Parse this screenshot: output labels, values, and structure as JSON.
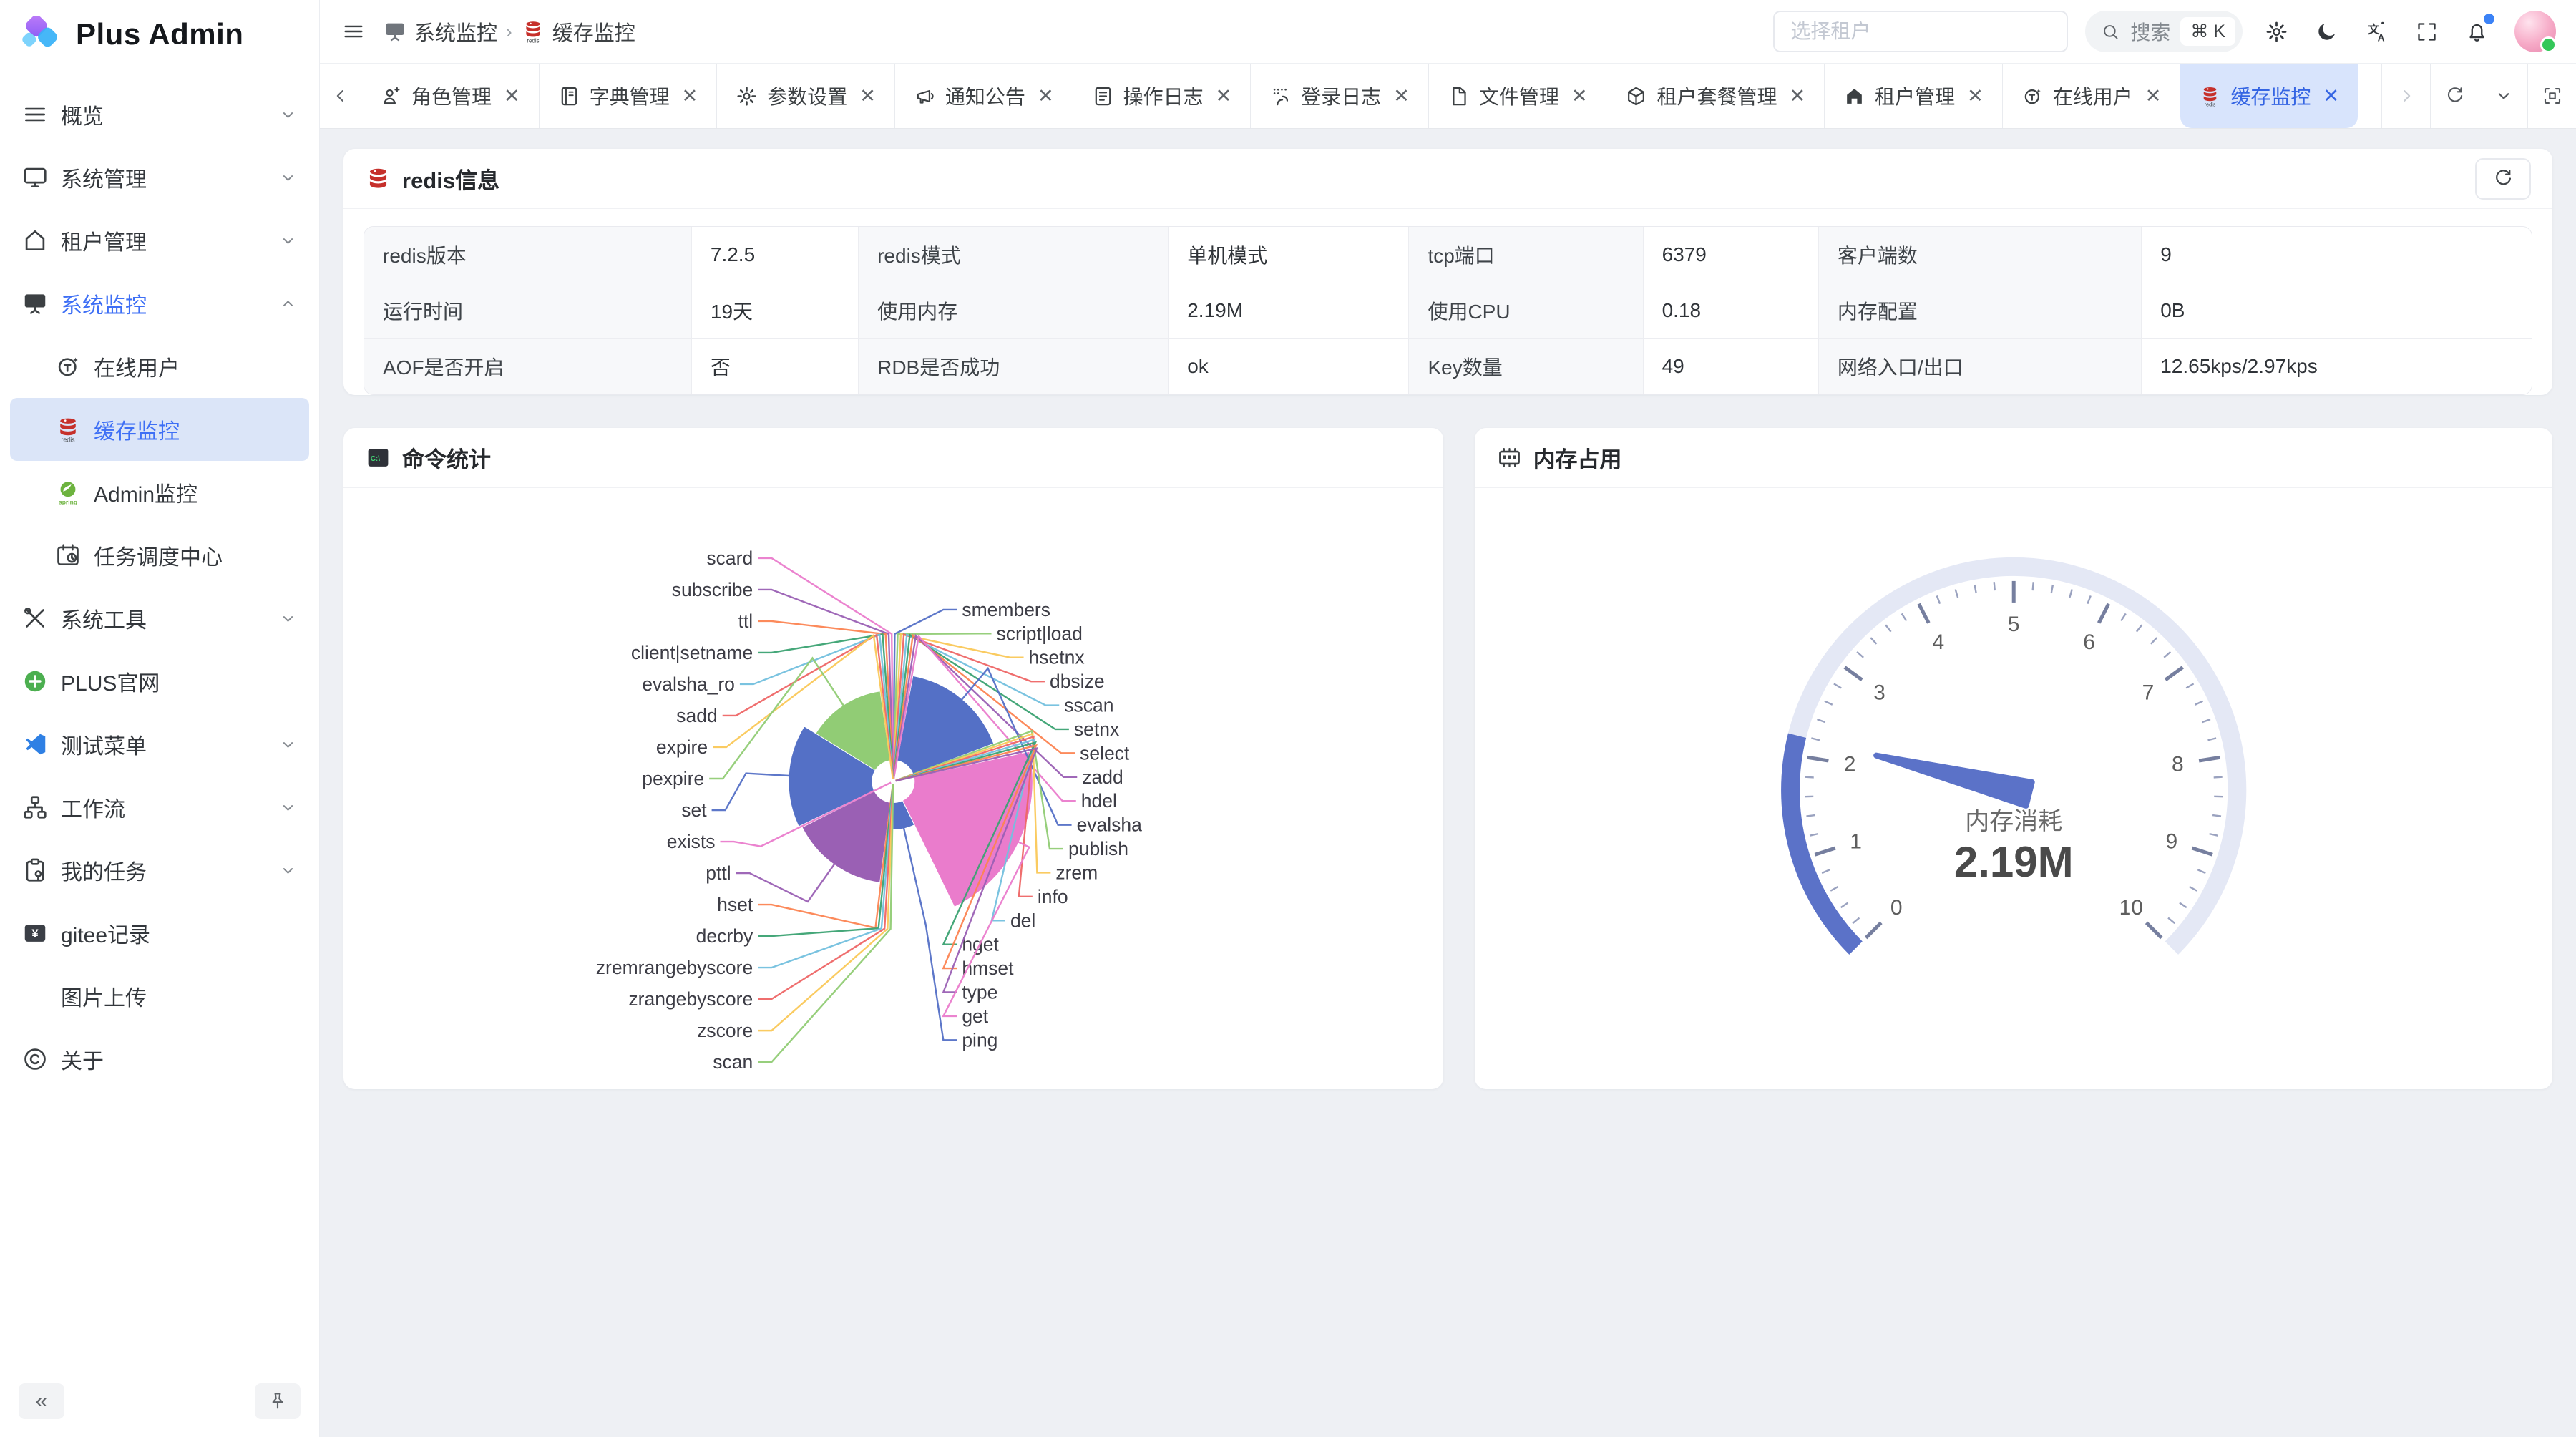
{
  "app": {
    "name": "Plus Admin"
  },
  "breadcrumb": {
    "items": [
      {
        "icon": "board",
        "label": "系统监控"
      },
      {
        "icon": "redisLabel",
        "label": "缓存监控"
      }
    ]
  },
  "header": {
    "tenant_placeholder": "选择租户",
    "search": {
      "label": "搜索",
      "shortcut": "⌘ K"
    },
    "icons": [
      "gear-icon",
      "moon-icon",
      "translate-icon",
      "fullscreen-icon",
      "bell-icon",
      "avatar"
    ]
  },
  "sidebar": {
    "items": [
      {
        "icon": "menu",
        "label": "概览",
        "chevron": "down"
      },
      {
        "icon": "monitor",
        "label": "系统管理",
        "chevron": "down"
      },
      {
        "icon": "home",
        "label": "租户管理",
        "chevron": "down"
      },
      {
        "icon": "board",
        "label": "系统监控",
        "chevron": "up",
        "active": true
      },
      {
        "icon": "online",
        "label": "在线用户",
        "child": true
      },
      {
        "icon": "redisLabel",
        "label": "缓存监控",
        "child": true,
        "selected": true
      },
      {
        "icon": "spring",
        "label": "Admin监控",
        "child": true
      },
      {
        "icon": "calendar",
        "label": "任务调度中心",
        "child": true
      },
      {
        "icon": "tools",
        "label": "系统工具",
        "chevron": "down"
      },
      {
        "icon": "plus",
        "label": "PLUS官网"
      },
      {
        "icon": "vscode",
        "label": "测试菜单",
        "chevron": "down"
      },
      {
        "icon": "workflow",
        "label": "工作流",
        "chevron": "down"
      },
      {
        "icon": "clipboard",
        "label": "我的任务",
        "chevron": "down"
      },
      {
        "icon": "gitee",
        "label": "gitee记录"
      },
      {
        "icon": "none",
        "label": "图片上传"
      },
      {
        "icon": "copyright",
        "label": "关于"
      }
    ],
    "footer": {
      "collapse_label": "«",
      "pin_icon": "pin"
    }
  },
  "tabs": {
    "items": [
      {
        "icon": "role",
        "label": "角色管理"
      },
      {
        "icon": "book",
        "label": "字典管理"
      },
      {
        "icon": "gear",
        "label": "参数设置"
      },
      {
        "icon": "megaphone",
        "label": "通知公告"
      },
      {
        "icon": "oplog",
        "label": "操作日志"
      },
      {
        "icon": "loginlog",
        "label": "登录日志"
      },
      {
        "icon": "filem",
        "label": "文件管理"
      },
      {
        "icon": "package",
        "label": "租户套餐管理"
      },
      {
        "icon": "building",
        "label": "租户管理"
      },
      {
        "icon": "online",
        "label": "在线用户"
      },
      {
        "icon": "redisLabel",
        "label": "缓存监控",
        "active": true
      }
    ]
  },
  "cards": {
    "redis": {
      "title": "redis信息",
      "rows": [
        [
          {
            "label": "redis版本",
            "value": "7.2.5"
          },
          {
            "label": "redis模式",
            "value": "单机模式"
          },
          {
            "label": "tcp端口",
            "value": "6379"
          },
          {
            "label": "客户端数",
            "value": "9"
          }
        ],
        [
          {
            "label": "运行时间",
            "value": "19天"
          },
          {
            "label": "使用内存",
            "value": "2.19M"
          },
          {
            "label": "使用CPU",
            "value": "0.18"
          },
          {
            "label": "内存配置",
            "value": "0B"
          }
        ],
        [
          {
            "label": "AOF是否开启",
            "value": "否"
          },
          {
            "label": "RDB是否成功",
            "value": "ok"
          },
          {
            "label": "Key数量",
            "value": "49"
          },
          {
            "label": "网络入口/出口",
            "value": "12.65kps/2.97kps"
          }
        ]
      ]
    },
    "commands": {
      "title": "命令统计"
    },
    "memory": {
      "title": "内存占用"
    }
  },
  "chart_data": [
    {
      "type": "pie",
      "variant": "nightingale-rose",
      "title": "命令统计",
      "legend_position": "none",
      "palette": [
        "#5470c6",
        "#91cc75",
        "#fac858",
        "#ee6666",
        "#73c0de",
        "#3ba272",
        "#fc8452",
        "#9a60b4",
        "#ea7ccc"
      ],
      "series": [
        {
          "name": "smembers",
          "value": 4
        },
        {
          "name": "script|load",
          "value": 4
        },
        {
          "name": "hsetnx",
          "value": 4
        },
        {
          "name": "dbsize",
          "value": 4
        },
        {
          "name": "sscan",
          "value": 4
        },
        {
          "name": "setnx",
          "value": 4
        },
        {
          "name": "select",
          "value": 4
        },
        {
          "name": "zadd",
          "value": 4
        },
        {
          "name": "hdel",
          "value": 4
        },
        {
          "name": "evalsha",
          "value": 200
        },
        {
          "name": "publish",
          "value": 4
        },
        {
          "name": "zrem",
          "value": 4
        },
        {
          "name": "info",
          "value": 4
        },
        {
          "name": "del",
          "value": 4
        },
        {
          "name": "hget",
          "value": 4
        },
        {
          "name": "hmset",
          "value": 4
        },
        {
          "name": "type",
          "value": 4
        },
        {
          "name": "get",
          "value": 260
        },
        {
          "name": "ping",
          "value": 90
        },
        {
          "name": "scan",
          "value": 4
        },
        {
          "name": "zscore",
          "value": 4
        },
        {
          "name": "zrangebyscore",
          "value": 4
        },
        {
          "name": "zremrangebyscore",
          "value": 4
        },
        {
          "name": "decrby",
          "value": 4
        },
        {
          "name": "hset",
          "value": 4
        },
        {
          "name": "pttl",
          "value": 190
        },
        {
          "name": "exists",
          "value": 4
        },
        {
          "name": "set",
          "value": 195
        },
        {
          "name": "pexpire",
          "value": 170
        },
        {
          "name": "expire",
          "value": 4
        },
        {
          "name": "sadd",
          "value": 4
        },
        {
          "name": "evalsha_ro",
          "value": 4
        },
        {
          "name": "client|setname",
          "value": 4
        },
        {
          "name": "ttl",
          "value": 4
        },
        {
          "name": "subscribe",
          "value": 4
        },
        {
          "name": "scard",
          "value": 4
        }
      ]
    },
    {
      "type": "gauge",
      "title": "内存消耗",
      "value": 2.19,
      "display": "2.19M",
      "min": 0,
      "max": 10,
      "tick_labels": [
        0,
        1,
        2,
        3,
        4,
        5,
        6,
        7,
        8,
        9,
        10
      ],
      "colors": {
        "progress": "#5b72c8",
        "track": "#e4e8f5",
        "tick": "#767f9f",
        "minor_tick": "#9aa2bf",
        "label": "#5e5e5e",
        "title_text": "#6a6a6a",
        "value_text": "#4a4a4a"
      }
    }
  ]
}
